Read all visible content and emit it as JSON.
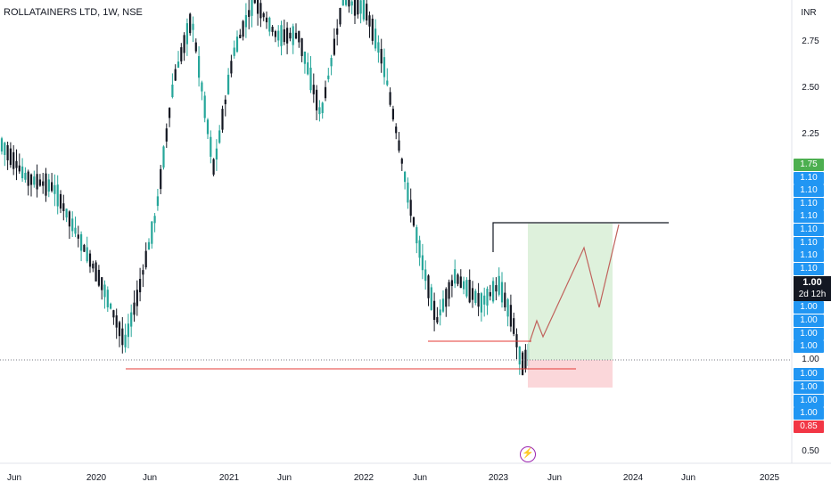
{
  "header": {
    "title": "ROLLATAINERS LTD, 1W, NSE"
  },
  "price_axis": {
    "currency": "INR",
    "ticks": [
      "2.75",
      "2.50",
      "2.25",
      "1.00",
      "0.50"
    ]
  },
  "price_labels": [
    {
      "text": "1.75",
      "color": "#4caf50"
    },
    {
      "text": "1.10",
      "color": "#2196f3"
    },
    {
      "text": "1.10",
      "color": "#2196f3"
    },
    {
      "text": "1.10",
      "color": "#2196f3"
    },
    {
      "text": "1.10",
      "color": "#2196f3"
    },
    {
      "text": "1.10",
      "color": "#2196f3"
    },
    {
      "text": "1.10",
      "color": "#2196f3"
    },
    {
      "text": "1.10",
      "color": "#2196f3"
    },
    {
      "text": "1.10",
      "color": "#2196f3"
    },
    {
      "text": "1.00",
      "color": "#2196f3"
    },
    {
      "text": "1.00",
      "color": "#2196f3"
    },
    {
      "text": "1.00",
      "color": "#2196f3"
    },
    {
      "text": "1.00",
      "color": "#2196f3"
    },
    {
      "text": "1.00",
      "color": "#2196f3"
    },
    {
      "text": "1.00",
      "color": "#2196f3"
    },
    {
      "text": "1.00",
      "color": "#2196f3"
    },
    {
      "text": "1.00",
      "color": "#2196f3"
    },
    {
      "text": "0.85",
      "color": "#f23645"
    }
  ],
  "current_price": {
    "value": "1.00",
    "countdown": "2d 12h"
  },
  "time_axis": {
    "labels": [
      "Jun",
      "2020",
      "Jun",
      "2021",
      "Jun",
      "2022",
      "Jun",
      "2023",
      "Jun",
      "2024",
      "Jun",
      "2025"
    ]
  },
  "colors": {
    "up": "#26a69a",
    "down": "#131722",
    "target_zone": "#d8efd6",
    "stop_zone": "#fbd3d6",
    "support_line": "#e53935",
    "projection_line": "#c0625c"
  },
  "chart_data": {
    "type": "candlestick",
    "title": "ROLLATAINERS LTD, 1W, NSE",
    "ylabel": "INR",
    "x_axis": [
      "Jun 2019",
      "2020",
      "Jun 2020",
      "2021",
      "Jun 2021",
      "2022",
      "Jun 2022",
      "2023",
      "Jun 2023",
      "2024",
      "Jun 2024",
      "2025"
    ],
    "y_ticks": [
      0.5,
      1.0,
      2.25,
      2.5,
      2.75
    ],
    "current_price": 1.0,
    "annotations": [
      "Long position: green target zone up to the horizontal resistance line, red stop zone below entry",
      "Horizontal red support lines at the 2020 low and the 2022 consolidation low",
      "Projected zig-zag path from entry toward the target line"
    ]
  }
}
